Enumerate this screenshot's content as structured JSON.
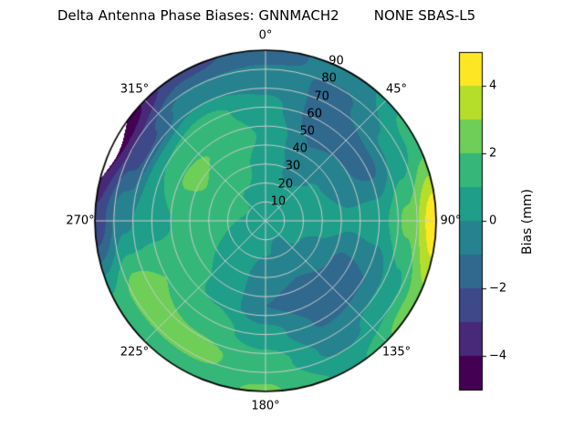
{
  "chart_data": {
    "type": "heatmap",
    "projection": "polar",
    "title": "Delta Antenna Phase Biases: GNNMACH2        NONE SBAS-L5",
    "theta_zero_location": "top",
    "theta_direction": "clockwise",
    "theta_ticks": [
      {
        "angle_deg": 0,
        "label": "0°"
      },
      {
        "angle_deg": 45,
        "label": "45°"
      },
      {
        "angle_deg": 90,
        "label": "90°"
      },
      {
        "angle_deg": 135,
        "label": "135°"
      },
      {
        "angle_deg": 180,
        "label": "180°"
      },
      {
        "angle_deg": 225,
        "label": "225°"
      },
      {
        "angle_deg": 270,
        "label": "270°"
      },
      {
        "angle_deg": 315,
        "label": "315°"
      }
    ],
    "r_max": 90,
    "r_ticks": [
      "10",
      "20",
      "30",
      "40",
      "50",
      "60",
      "70",
      "80",
      "90"
    ],
    "r_label_angle_deg": 22.5,
    "levels": [
      -5,
      -4,
      -3,
      -2,
      -1,
      0,
      1,
      2,
      3,
      4,
      5
    ],
    "palette": [
      "#440154",
      "#482878",
      "#3e4989",
      "#31688e",
      "#26828e",
      "#1f9e89",
      "#35b779",
      "#6ece58",
      "#b5de2b",
      "#fde725"
    ],
    "grid_color": "#cccccc",
    "outline_color": "#000000",
    "azimuths_deg": [
      0,
      30,
      60,
      90,
      120,
      150,
      180,
      210,
      240,
      270,
      300,
      330
    ],
    "radii_deg": [
      0,
      15,
      30,
      45,
      60,
      75,
      90
    ],
    "values_mm": [
      [
        0.7,
        0.6,
        0.6,
        0.9,
        0.4,
        -0.6,
        -1.4
      ],
      [
        0.7,
        0.3,
        -0.3,
        -1.0,
        -1.6,
        -1.2,
        -0.6
      ],
      [
        0.7,
        0.5,
        0.1,
        -0.8,
        -1.4,
        0.2,
        1.4
      ],
      [
        0.7,
        0.6,
        0.6,
        0.2,
        0.6,
        2.2,
        4.8
      ],
      [
        0.7,
        0.2,
        -0.4,
        -1.2,
        -1.0,
        0.6,
        2.6
      ],
      [
        0.7,
        -0.2,
        -0.9,
        -1.5,
        -1.1,
        -0.3,
        0.8
      ],
      [
        0.7,
        0.1,
        -0.6,
        -1.0,
        0.4,
        1.5,
        2.1
      ],
      [
        0.7,
        0.5,
        0.4,
        0.7,
        1.5,
        2.3,
        1.6
      ],
      [
        0.7,
        0.8,
        1.0,
        1.4,
        2.0,
        2.5,
        1.2
      ],
      [
        0.7,
        1.0,
        1.4,
        1.1,
        0.6,
        -0.2,
        -2.8
      ],
      [
        0.7,
        1.1,
        1.9,
        2.2,
        1.0,
        -2.5,
        -5.0
      ],
      [
        0.7,
        0.9,
        1.4,
        1.9,
        1.3,
        -0.4,
        -2.4
      ]
    ],
    "masked_region": {
      "az_start_deg": 284,
      "az_end_deg": 306,
      "max_depth_deg": 4.5
    },
    "colorbar": {
      "label": "Bias (mm)",
      "min": -5,
      "max": 5,
      "tick_values": [
        -4,
        -2,
        0,
        2,
        4
      ],
      "tick_labels": [
        "−4",
        "−2",
        "0",
        "2",
        "4"
      ]
    }
  }
}
